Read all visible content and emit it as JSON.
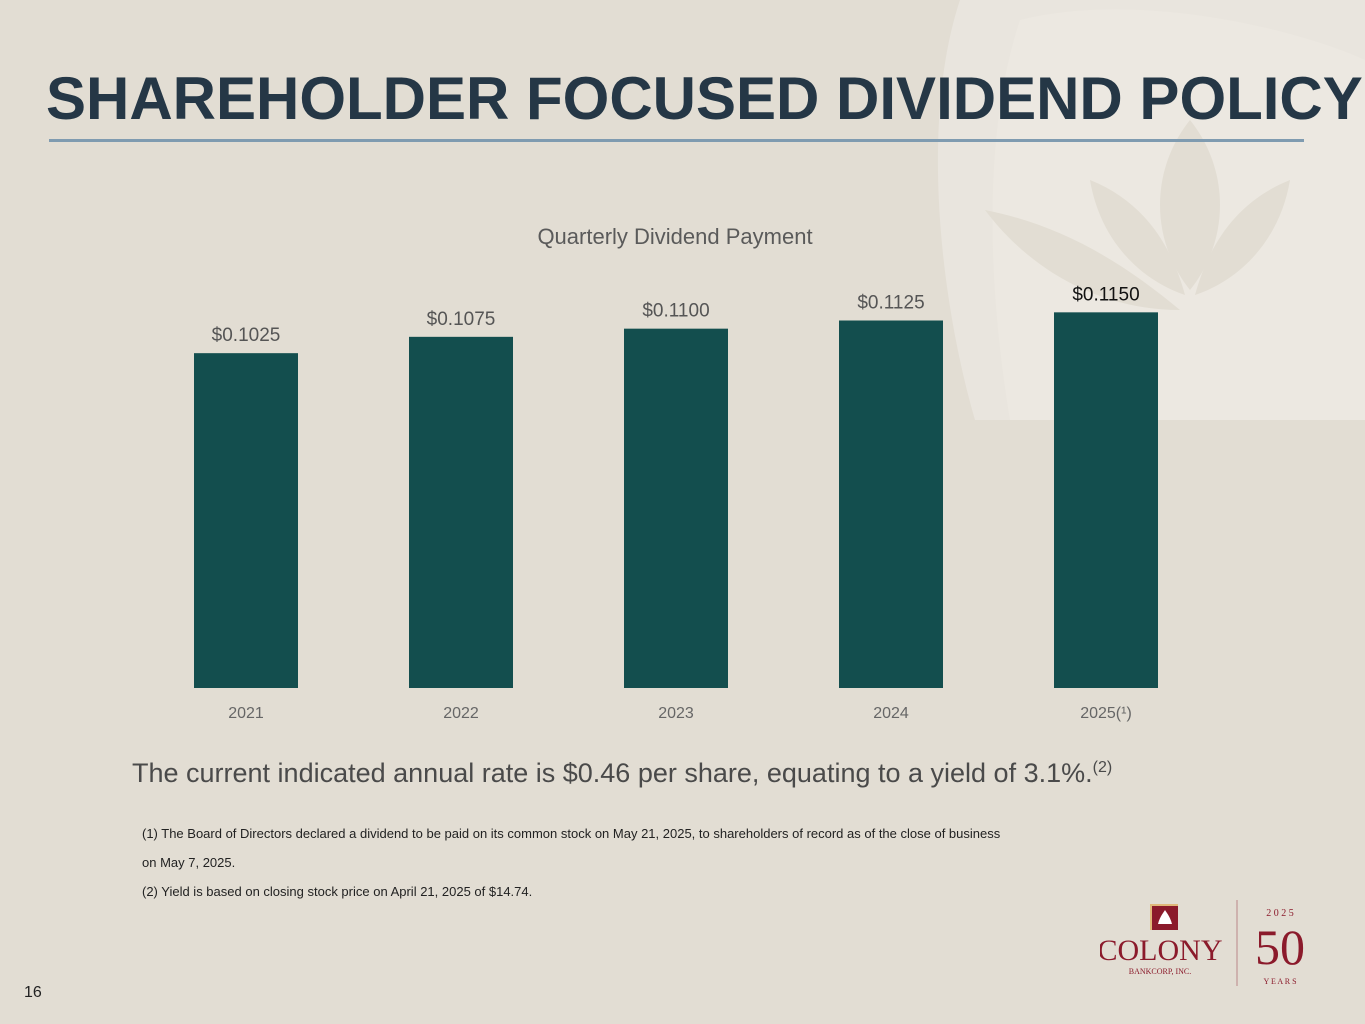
{
  "title": "SHAREHOLDER FOCUSED DIVIDEND POLICY",
  "summary": {
    "text": "The current indicated annual rate is $0.46 per share, equating to a yield of 3.1%.",
    "sup": "(2)"
  },
  "footnotes": [
    "(1) The Board of Directors declared a dividend to be paid on its common stock on May 21, 2025, to shareholders of record as of the close of business",
    "on May 7, 2025.",
    "(2) Yield is based on closing stock price on April 21, 2025 of $14.74."
  ],
  "page_number": "16",
  "logo": {
    "name": "COLONY",
    "sub": "BANKCORP, INC.",
    "year": "2 0 2 5",
    "anniversary": "50",
    "years": "Y E A R S"
  },
  "colors": {
    "bar": "#134e4e",
    "title": "#253746",
    "background": "#e2ddd3",
    "logo": "#8b1a2b"
  },
  "chart_data": {
    "type": "bar",
    "title": "Quarterly Dividend Payment",
    "categories": [
      "2021",
      "2022",
      "2023",
      "2024",
      "2025(¹)"
    ],
    "values": [
      0.1025,
      0.1075,
      0.11,
      0.1125,
      0.115
    ],
    "labels": [
      "$0.1025",
      "$0.1075",
      "$0.1100",
      "$0.1125",
      "$0.1150"
    ],
    "xlabel": "",
    "ylabel": "",
    "ylim": [
      0,
      0.12
    ],
    "grid": false
  }
}
